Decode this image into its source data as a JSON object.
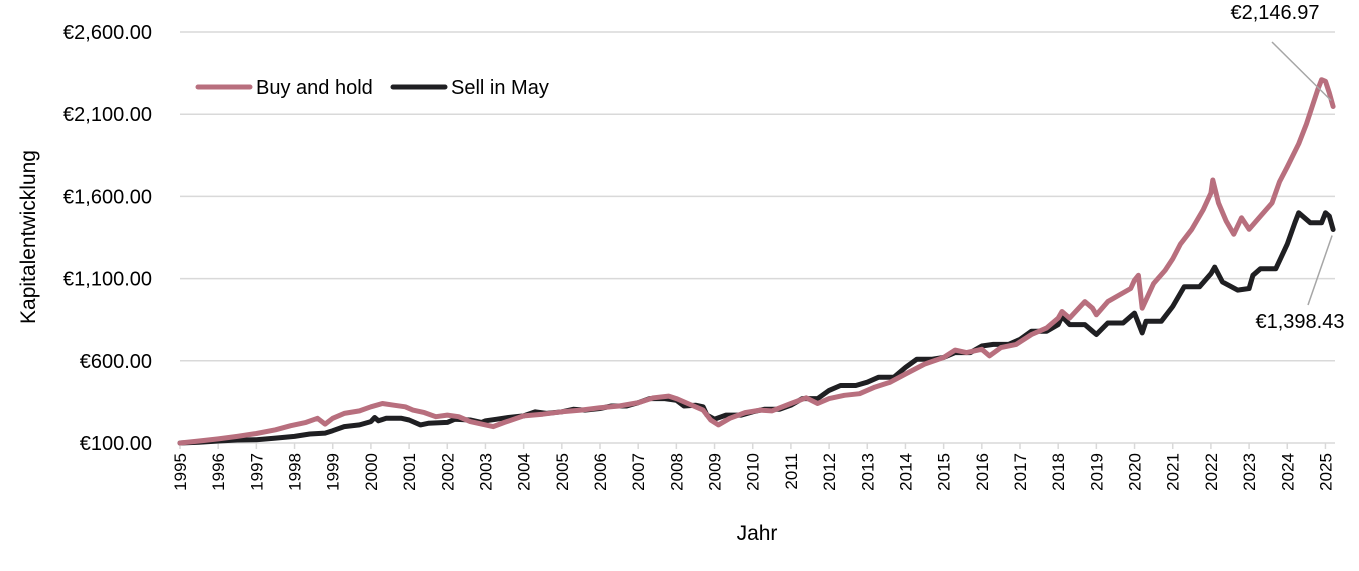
{
  "chart_data": {
    "type": "line",
    "title": "",
    "xlabel": "Jahr",
    "ylabel": "Kapitalentwicklung",
    "xlim": [
      1995,
      2025.25
    ],
    "ylim": [
      100,
      2600
    ],
    "y_ticks": [
      "€100.00",
      "€600.00",
      "€1,100.00",
      "€1,600.00",
      "€2,100.00",
      "€2,600.00"
    ],
    "x_ticks": [
      "1995",
      "1996",
      "1997",
      "1998",
      "1999",
      "2000",
      "2001",
      "2002",
      "2003",
      "2004",
      "2005",
      "2006",
      "2007",
      "2008",
      "2009",
      "2010",
      "2011",
      "2012",
      "2013",
      "2014",
      "2015",
      "2016",
      "2017",
      "2018",
      "2019",
      "2020",
      "2021",
      "2022",
      "2023",
      "2024",
      "2025"
    ],
    "grid": true,
    "legend": "top-left",
    "colors": {
      "buy_and_hold": "#b86f7e",
      "sell_in_may": "#1f1f22",
      "grid": "#d9d9d9",
      "leader": "#a6a6a6"
    },
    "annotations": [
      {
        "text": "€2,146.97",
        "series": "Buy and hold"
      },
      {
        "text": "€1,398.43",
        "series": "Sell in May"
      }
    ],
    "series": [
      {
        "name": "Buy and hold",
        "points": [
          [
            1995.0,
            100
          ],
          [
            1995.5,
            112
          ],
          [
            1996.0,
            125
          ],
          [
            1996.5,
            140
          ],
          [
            1997.0,
            158
          ],
          [
            1997.5,
            180
          ],
          [
            1997.9,
            205
          ],
          [
            1998.3,
            225
          ],
          [
            1998.6,
            250
          ],
          [
            1998.8,
            215
          ],
          [
            1999.0,
            250
          ],
          [
            1999.3,
            280
          ],
          [
            1999.7,
            295
          ],
          [
            2000.0,
            320
          ],
          [
            2000.3,
            340
          ],
          [
            2000.6,
            330
          ],
          [
            2000.9,
            320
          ],
          [
            2001.1,
            300
          ],
          [
            2001.4,
            285
          ],
          [
            2001.7,
            260
          ],
          [
            2002.0,
            270
          ],
          [
            2002.3,
            260
          ],
          [
            2002.6,
            230
          ],
          [
            2002.9,
            215
          ],
          [
            2003.2,
            200
          ],
          [
            2003.5,
            225
          ],
          [
            2004.0,
            265
          ],
          [
            2004.5,
            275
          ],
          [
            2005.0,
            290
          ],
          [
            2005.5,
            300
          ],
          [
            2006.0,
            315
          ],
          [
            2006.5,
            325
          ],
          [
            2007.0,
            345
          ],
          [
            2007.4,
            375
          ],
          [
            2007.8,
            385
          ],
          [
            2008.0,
            370
          ],
          [
            2008.3,
            340
          ],
          [
            2008.7,
            300
          ],
          [
            2008.9,
            240
          ],
          [
            2009.1,
            210
          ],
          [
            2009.4,
            250
          ],
          [
            2009.8,
            285
          ],
          [
            2010.2,
            300
          ],
          [
            2010.5,
            295
          ],
          [
            2011.0,
            340
          ],
          [
            2011.4,
            375
          ],
          [
            2011.7,
            340
          ],
          [
            2012.0,
            370
          ],
          [
            2012.4,
            390
          ],
          [
            2012.8,
            400
          ],
          [
            2013.2,
            440
          ],
          [
            2013.6,
            470
          ],
          [
            2014.0,
            520
          ],
          [
            2014.5,
            580
          ],
          [
            2015.0,
            620
          ],
          [
            2015.3,
            665
          ],
          [
            2015.6,
            650
          ],
          [
            2016.0,
            670
          ],
          [
            2016.2,
            630
          ],
          [
            2016.5,
            680
          ],
          [
            2016.9,
            700
          ],
          [
            2017.3,
            760
          ],
          [
            2017.7,
            800
          ],
          [
            2018.0,
            860
          ],
          [
            2018.1,
            900
          ],
          [
            2018.3,
            860
          ],
          [
            2018.7,
            960
          ],
          [
            2018.9,
            920
          ],
          [
            2019.0,
            880
          ],
          [
            2019.3,
            960
          ],
          [
            2019.6,
            1000
          ],
          [
            2019.9,
            1040
          ],
          [
            2020.0,
            1090
          ],
          [
            2020.1,
            1120
          ],
          [
            2020.2,
            920
          ],
          [
            2020.5,
            1070
          ],
          [
            2020.8,
            1150
          ],
          [
            2021.0,
            1220
          ],
          [
            2021.2,
            1310
          ],
          [
            2021.5,
            1400
          ],
          [
            2021.8,
            1520
          ],
          [
            2022.0,
            1620
          ],
          [
            2022.05,
            1700
          ],
          [
            2022.2,
            1560
          ],
          [
            2022.4,
            1450
          ],
          [
            2022.6,
            1370
          ],
          [
            2022.8,
            1470
          ],
          [
            2023.0,
            1400
          ],
          [
            2023.3,
            1480
          ],
          [
            2023.6,
            1560
          ],
          [
            2023.8,
            1690
          ],
          [
            2024.0,
            1780
          ],
          [
            2024.3,
            1920
          ],
          [
            2024.5,
            2040
          ],
          [
            2024.7,
            2180
          ],
          [
            2024.8,
            2250
          ],
          [
            2024.9,
            2310
          ],
          [
            2025.0,
            2300
          ],
          [
            2025.1,
            2230
          ],
          [
            2025.2,
            2146.97
          ]
        ]
      },
      {
        "name": "Sell in May",
        "points": [
          [
            1995.0,
            100
          ],
          [
            1995.5,
            105
          ],
          [
            1996.0,
            112
          ],
          [
            1996.5,
            118
          ],
          [
            1997.0,
            120
          ],
          [
            1997.5,
            130
          ],
          [
            1998.0,
            140
          ],
          [
            1998.4,
            155
          ],
          [
            1998.8,
            160
          ],
          [
            1999.0,
            175
          ],
          [
            1999.3,
            200
          ],
          [
            1999.7,
            210
          ],
          [
            2000.0,
            230
          ],
          [
            2000.1,
            255
          ],
          [
            2000.2,
            235
          ],
          [
            2000.4,
            250
          ],
          [
            2000.8,
            250
          ],
          [
            2001.0,
            240
          ],
          [
            2001.3,
            210
          ],
          [
            2001.5,
            220
          ],
          [
            2002.0,
            225
          ],
          [
            2002.2,
            245
          ],
          [
            2002.6,
            240
          ],
          [
            2002.9,
            225
          ],
          [
            2003.0,
            235
          ],
          [
            2003.3,
            245
          ],
          [
            2003.6,
            255
          ],
          [
            2004.0,
            265
          ],
          [
            2004.3,
            290
          ],
          [
            2004.6,
            280
          ],
          [
            2005.0,
            290
          ],
          [
            2005.3,
            305
          ],
          [
            2005.6,
            300
          ],
          [
            2006.0,
            310
          ],
          [
            2006.3,
            325
          ],
          [
            2006.7,
            325
          ],
          [
            2007.0,
            345
          ],
          [
            2007.3,
            370
          ],
          [
            2007.7,
            370
          ],
          [
            2008.0,
            360
          ],
          [
            2008.2,
            325
          ],
          [
            2008.5,
            330
          ],
          [
            2008.7,
            320
          ],
          [
            2008.8,
            270
          ],
          [
            2009.0,
            245
          ],
          [
            2009.3,
            270
          ],
          [
            2009.7,
            270
          ],
          [
            2010.0,
            290
          ],
          [
            2010.3,
            305
          ],
          [
            2010.7,
            305
          ],
          [
            2011.0,
            330
          ],
          [
            2011.3,
            370
          ],
          [
            2011.7,
            370
          ],
          [
            2012.0,
            420
          ],
          [
            2012.3,
            450
          ],
          [
            2012.7,
            450
          ],
          [
            2013.0,
            470
          ],
          [
            2013.3,
            500
          ],
          [
            2013.7,
            500
          ],
          [
            2014.0,
            560
          ],
          [
            2014.3,
            610
          ],
          [
            2014.7,
            610
          ],
          [
            2015.0,
            620
          ],
          [
            2015.3,
            650
          ],
          [
            2015.7,
            650
          ],
          [
            2016.0,
            690
          ],
          [
            2016.3,
            700
          ],
          [
            2016.7,
            700
          ],
          [
            2017.0,
            730
          ],
          [
            2017.3,
            780
          ],
          [
            2017.7,
            780
          ],
          [
            2018.0,
            820
          ],
          [
            2018.1,
            870
          ],
          [
            2018.3,
            820
          ],
          [
            2018.7,
            820
          ],
          [
            2018.9,
            780
          ],
          [
            2019.0,
            760
          ],
          [
            2019.3,
            830
          ],
          [
            2019.7,
            830
          ],
          [
            2019.9,
            870
          ],
          [
            2020.0,
            890
          ],
          [
            2020.2,
            770
          ],
          [
            2020.3,
            840
          ],
          [
            2020.7,
            840
          ],
          [
            2021.0,
            930
          ],
          [
            2021.3,
            1050
          ],
          [
            2021.7,
            1050
          ],
          [
            2022.0,
            1130
          ],
          [
            2022.1,
            1170
          ],
          [
            2022.3,
            1080
          ],
          [
            2022.7,
            1030
          ],
          [
            2023.0,
            1040
          ],
          [
            2023.1,
            1120
          ],
          [
            2023.3,
            1160
          ],
          [
            2023.7,
            1160
          ],
          [
            2024.0,
            1310
          ],
          [
            2024.2,
            1440
          ],
          [
            2024.3,
            1500
          ],
          [
            2024.6,
            1440
          ],
          [
            2024.9,
            1440
          ],
          [
            2025.0,
            1500
          ],
          [
            2025.1,
            1480
          ],
          [
            2025.2,
            1398.43
          ]
        ]
      }
    ]
  }
}
